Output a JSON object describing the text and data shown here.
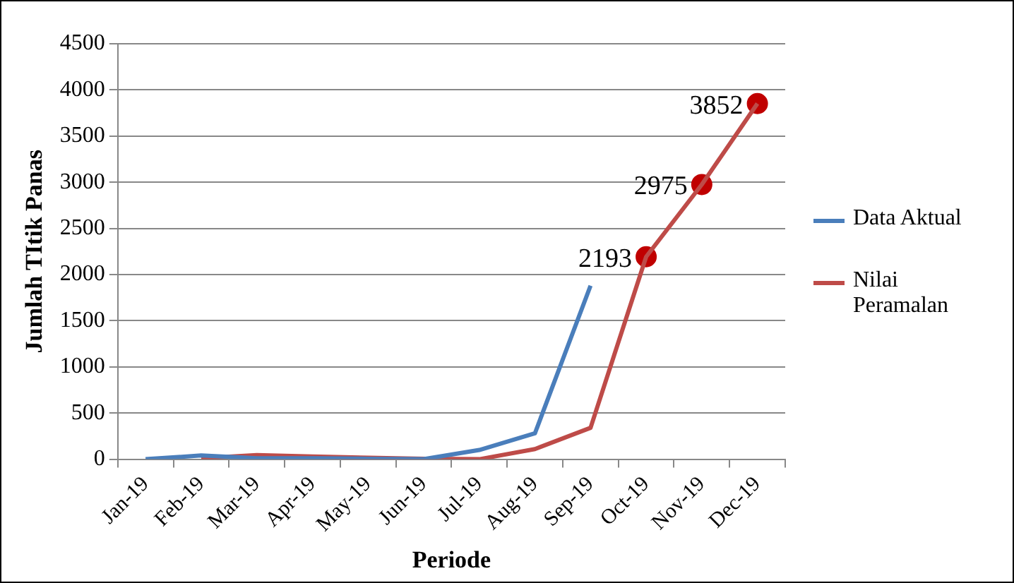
{
  "chart_data": {
    "type": "line",
    "xlabel": "Periode",
    "ylabel": "Jumlah TItik Panas",
    "categories": [
      "Jan-19",
      "Feb-19",
      "Mar-19",
      "Apr-19",
      "May-19",
      "Jun-19",
      "Jul-19",
      "Aug-19",
      "Sep-19",
      "Oct-19",
      "Nov-19",
      "Dec-19"
    ],
    "series": [
      {
        "name": "Data Aktual",
        "color": "#4a7ebb",
        "values": [
          0,
          40,
          10,
          10,
          5,
          0,
          100,
          280,
          1880,
          null,
          null,
          null
        ]
      },
      {
        "name": "Nilai Peramalan",
        "color": "#be4b48",
        "values": [
          null,
          10,
          45,
          30,
          15,
          5,
          0,
          110,
          340,
          2193,
          2975,
          3852
        ]
      },
      {
        "type": "scatter",
        "color": "#c00000",
        "marker": "circle",
        "values": [
          null,
          null,
          null,
          null,
          null,
          null,
          null,
          null,
          null,
          2193,
          2975,
          3852
        ],
        "value_labels": [
          null,
          null,
          null,
          null,
          null,
          null,
          null,
          null,
          null,
          "2193",
          "2975",
          "3852"
        ]
      }
    ],
    "ylim": [
      0,
      4500
    ],
    "yticks": [
      0,
      500,
      1000,
      1500,
      2000,
      2500,
      3000,
      3500,
      4000,
      4500
    ],
    "grid": "y",
    "legend": "right",
    "marker": "none"
  }
}
